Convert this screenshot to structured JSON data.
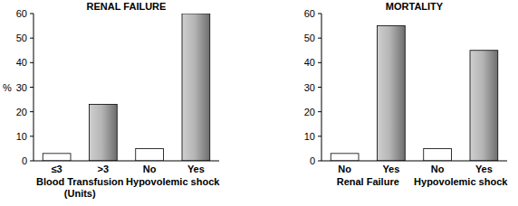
{
  "chart_data": [
    {
      "type": "bar",
      "title": "RENAL FAILURE",
      "y_label": "%",
      "categories": [
        "≤3",
        ">3",
        "No",
        "Yes"
      ],
      "group_labels": [
        "Blood Transfusion (Units)",
        "Hypovolemic shock"
      ],
      "values": [
        3,
        23,
        5,
        60
      ],
      "colors": [
        "#ffffff",
        "#a8a8a8",
        "#ffffff",
        "#a8a8a8"
      ],
      "ylim": [
        0,
        60
      ],
      "yticks": [
        0,
        10,
        20,
        30,
        40,
        50,
        60
      ],
      "grid": false
    },
    {
      "type": "bar",
      "title": "MORTALITY",
      "categories": [
        "No",
        "Yes",
        "No",
        "Yes"
      ],
      "group_labels": [
        "Renal Failure",
        "Hypovolemic shock"
      ],
      "values": [
        3,
        55,
        5,
        45
      ],
      "colors": [
        "#ffffff",
        "#a8a8a8",
        "#ffffff",
        "#a8a8a8"
      ],
      "ylim": [
        0,
        60
      ],
      "yticks": [
        0,
        10,
        20,
        30,
        40,
        50,
        60
      ],
      "grid": false
    }
  ]
}
